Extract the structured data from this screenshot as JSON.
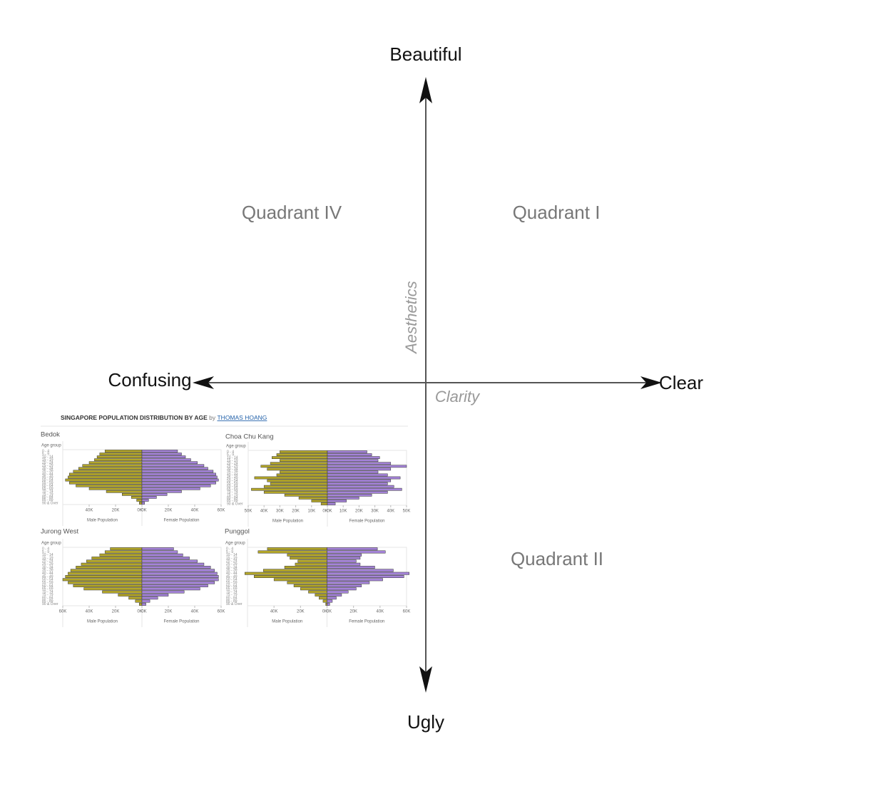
{
  "axes": {
    "top": "Beautiful",
    "bottom": "Ugly",
    "left": "Confusing",
    "right": "Clear",
    "vertical_label": "Aesthetics",
    "horizontal_label": "Clarity"
  },
  "quadrants": {
    "q1": "Quadrant I",
    "q2": "Quadrant II",
    "q4": "Quadrant IV"
  },
  "inset": {
    "title": "SINGAPORE POPULATION DISTRIBUTION BY AGE",
    "by": "by",
    "author": "THOMAS HOANG",
    "age_axis_label": "Age group",
    "male_label": "Male Population",
    "female_label": "Female Population",
    "male_color": "#b3a629",
    "female_color": "#a483d8",
    "age_groups": [
      "0 - 4",
      "5 - 9",
      "10 - 14",
      "15 - 19",
      "20 - 24",
      "25 - 29",
      "30 - 34",
      "35 - 39",
      "40 - 44",
      "45 - 49",
      "50 - 54",
      "55 - 59",
      "60 - 64",
      "65 - 69",
      "70 - 74",
      "75 - 79",
      "80 - 84",
      "85 - 89",
      "90 & Over"
    ],
    "panels": [
      {
        "name": "Bedok",
        "xmax": 60000,
        "male_ticks": [
          {
            "value": 40000,
            "label": "40K"
          },
          {
            "value": 20000,
            "label": "20K"
          },
          {
            "value": 0,
            "label": "0K"
          }
        ],
        "female_ticks": [
          {
            "value": 0,
            "label": "0K"
          },
          {
            "value": 20000,
            "label": "20K"
          },
          {
            "value": 40000,
            "label": "40K"
          },
          {
            "value": 60000,
            "label": "60K"
          }
        ],
        "male": [
          28000,
          32000,
          34000,
          36000,
          40000,
          45000,
          48000,
          52000,
          55000,
          56000,
          58000,
          55000,
          50000,
          40000,
          27000,
          15000,
          8000,
          4000,
          2000
        ],
        "female": [
          27000,
          30000,
          33000,
          37000,
          42000,
          47000,
          50000,
          54000,
          56000,
          57000,
          58000,
          56000,
          52000,
          44000,
          30000,
          19000,
          11000,
          5000,
          2000
        ]
      },
      {
        "name": "Choa Chu Kang",
        "xmax": 50000,
        "male_ticks": [
          {
            "value": 50000,
            "label": "50K"
          },
          {
            "value": 40000,
            "label": "40K"
          },
          {
            "value": 30000,
            "label": "30K"
          },
          {
            "value": 20000,
            "label": "20K"
          },
          {
            "value": 10000,
            "label": "10K"
          },
          {
            "value": 0,
            "label": "0K"
          }
        ],
        "female_ticks": [
          {
            "value": 0,
            "label": "0K"
          },
          {
            "value": 10000,
            "label": "10K"
          },
          {
            "value": 20000,
            "label": "20K"
          },
          {
            "value": 30000,
            "label": "30K"
          },
          {
            "value": 40000,
            "label": "40K"
          },
          {
            "value": 50000,
            "label": "50K"
          }
        ],
        "male": [
          30000,
          32000,
          35000,
          30000,
          36000,
          42000,
          38000,
          30000,
          32000,
          46000,
          38000,
          36000,
          40000,
          48000,
          40000,
          27000,
          18000,
          10000,
          4000
        ],
        "female": [
          25000,
          28000,
          33000,
          32000,
          40000,
          50000,
          40000,
          32000,
          38000,
          46000,
          40000,
          38000,
          42000,
          47000,
          38000,
          28000,
          20000,
          12000,
          5000
        ]
      },
      {
        "name": "Jurong West",
        "xmax": 60000,
        "male_ticks": [
          {
            "value": 60000,
            "label": "60K"
          },
          {
            "value": 40000,
            "label": "40K"
          },
          {
            "value": 20000,
            "label": "20K"
          },
          {
            "value": 0,
            "label": "0K"
          }
        ],
        "female_ticks": [
          {
            "value": 0,
            "label": "0K"
          },
          {
            "value": 20000,
            "label": "20K"
          },
          {
            "value": 40000,
            "label": "40K"
          },
          {
            "value": 60000,
            "label": "60K"
          }
        ],
        "male": [
          24000,
          28000,
          32000,
          38000,
          42000,
          46000,
          50000,
          54000,
          56000,
          58000,
          60000,
          56000,
          52000,
          44000,
          30000,
          18000,
          10000,
          5000,
          2000
        ],
        "female": [
          24000,
          27000,
          31000,
          36000,
          42000,
          47000,
          52000,
          55000,
          57000,
          58000,
          58000,
          55000,
          50000,
          44000,
          32000,
          20000,
          12000,
          6000,
          3000
        ]
      },
      {
        "name": "Punggol",
        "xmax": 60000,
        "male_ticks": [
          {
            "value": 40000,
            "label": "40K"
          },
          {
            "value": 20000,
            "label": "20K"
          },
          {
            "value": 0,
            "label": "0K"
          }
        ],
        "female_ticks": [
          {
            "value": 0,
            "label": "0K"
          },
          {
            "value": 20000,
            "label": "20K"
          },
          {
            "value": 40000,
            "label": "40K"
          },
          {
            "value": 60000,
            "label": "60K"
          }
        ],
        "male": [
          45000,
          52000,
          30000,
          28000,
          22000,
          24000,
          32000,
          48000,
          62000,
          55000,
          40000,
          30000,
          25000,
          20000,
          14000,
          9000,
          6000,
          3000,
          1000
        ],
        "female": [
          38000,
          44000,
          26000,
          25000,
          22000,
          25000,
          36000,
          50000,
          62000,
          58000,
          42000,
          32000,
          26000,
          22000,
          16000,
          11000,
          7000,
          4000,
          2000
        ]
      }
    ]
  }
}
